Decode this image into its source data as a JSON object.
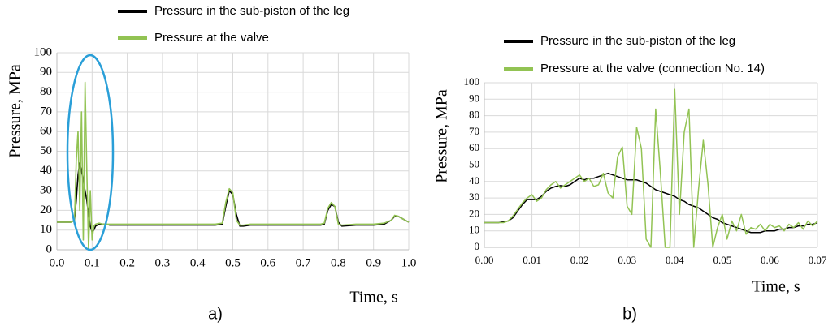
{
  "chart_data": [
    {
      "type": "line",
      "caption": "a)",
      "xlabel": "Time, s",
      "ylabel": "Pressure, MPa",
      "x": [
        0,
        0.01,
        0.02,
        0.03,
        0.04,
        0.05,
        0.055,
        0.06,
        0.065,
        0.07,
        0.075,
        0.08,
        0.085,
        0.09,
        0.095,
        0.1,
        0.105,
        0.11,
        0.12,
        0.13,
        0.14,
        0.15,
        0.2,
        0.25,
        0.3,
        0.35,
        0.4,
        0.45,
        0.47,
        0.48,
        0.49,
        0.5,
        0.51,
        0.52,
        0.53,
        0.55,
        0.6,
        0.65,
        0.7,
        0.75,
        0.76,
        0.77,
        0.78,
        0.79,
        0.8,
        0.81,
        0.85,
        0.9,
        0.93,
        0.95,
        0.96,
        0.97,
        0.98,
        0.99,
        1.0
      ],
      "series": [
        {
          "name": "Pressure in the sub-piston of the leg",
          "color": "#000000",
          "values": [
            14,
            14,
            14,
            14,
            14,
            15,
            25,
            38,
            44,
            40,
            35,
            30,
            25,
            18,
            12,
            9,
            10,
            12,
            13,
            13,
            13,
            12.5,
            12.5,
            12.5,
            12.5,
            12.5,
            12.5,
            12.5,
            13,
            22,
            30,
            28,
            18,
            12,
            12,
            12.5,
            12.5,
            12.5,
            12.5,
            12.5,
            13,
            20,
            23,
            22,
            14,
            12,
            12.5,
            12.5,
            13,
            15,
            17,
            17,
            16,
            15,
            14
          ]
        },
        {
          "name": "Pressure at the valve",
          "color": "#92c353",
          "values": [
            14,
            14,
            14,
            14,
            14,
            15,
            45,
            60,
            20,
            70,
            5,
            85,
            40,
            0,
            30,
            5,
            12,
            13,
            13.5,
            13,
            13,
            13,
            13,
            13,
            13,
            13,
            13,
            13,
            13.5,
            24,
            31,
            29,
            15,
            12.5,
            12.5,
            13,
            13,
            13,
            13,
            13,
            13.5,
            21,
            24,
            22,
            13,
            12.5,
            13,
            13,
            13.5,
            15,
            17.5,
            17,
            16,
            15,
            14
          ]
        }
      ],
      "xlim": [
        0,
        1.0
      ],
      "xticks": [
        {
          "value": 0,
          "label": "0.0"
        },
        0.1,
        0.2,
        0.3,
        0.4,
        0.5,
        0.6,
        0.7,
        0.8,
        0.9,
        {
          "value": 1.0,
          "label": "1.0"
        }
      ],
      "ylim": [
        0,
        100
      ],
      "yticks": [
        0,
        10,
        20,
        30,
        40,
        50,
        60,
        70,
        80,
        90,
        100
      ],
      "grid": true
    },
    {
      "type": "line",
      "caption": "b)",
      "xlabel": "Time, s",
      "ylabel": "Pressure, MPa",
      "x": [
        0,
        0.001,
        0.002,
        0.003,
        0.004,
        0.005,
        0.006,
        0.007,
        0.008,
        0.009,
        0.01,
        0.011,
        0.012,
        0.013,
        0.014,
        0.015,
        0.016,
        0.017,
        0.018,
        0.019,
        0.02,
        0.021,
        0.022,
        0.023,
        0.024,
        0.025,
        0.026,
        0.027,
        0.028,
        0.029,
        0.03,
        0.031,
        0.032,
        0.033,
        0.034,
        0.035,
        0.036,
        0.037,
        0.038,
        0.039,
        0.04,
        0.041,
        0.042,
        0.043,
        0.044,
        0.045,
        0.046,
        0.047,
        0.048,
        0.049,
        0.05,
        0.051,
        0.052,
        0.053,
        0.054,
        0.055,
        0.056,
        0.057,
        0.058,
        0.059,
        0.06,
        0.061,
        0.062,
        0.063,
        0.064,
        0.065,
        0.066,
        0.067,
        0.068,
        0.069,
        0.07
      ],
      "series": [
        {
          "name": "Pressure in the sub-piston of the leg",
          "color": "#000000",
          "values": [
            15,
            15,
            15,
            15,
            15.5,
            16,
            18,
            22,
            26,
            29,
            29,
            29,
            31,
            34,
            36,
            37,
            37.5,
            37,
            38,
            40,
            42,
            41,
            42,
            42,
            43,
            44,
            45,
            44,
            43,
            42,
            41,
            41,
            41,
            40,
            39,
            37,
            35,
            34,
            33,
            32,
            31,
            29,
            28,
            26,
            25,
            24,
            22,
            20,
            18,
            17,
            15,
            14,
            13,
            12,
            11,
            10,
            9,
            9,
            9,
            10,
            10,
            10,
            11,
            11,
            12,
            12,
            13,
            13,
            14,
            14,
            15
          ]
        },
        {
          "name": "Pressure at the valve (connection No. 14)",
          "color": "#92c353",
          "values": [
            15,
            15,
            15,
            15,
            15,
            16,
            19,
            23,
            27,
            30,
            32,
            28,
            30,
            35,
            38,
            40,
            36,
            38,
            40,
            42,
            44,
            40,
            42,
            37,
            38,
            45,
            33,
            30,
            55,
            61,
            25,
            20,
            73,
            60,
            5,
            0,
            84,
            45,
            0,
            0,
            96,
            20,
            70,
            84,
            0,
            35,
            65,
            38,
            0,
            12,
            20,
            5,
            16,
            10,
            20,
            8,
            12,
            11,
            14,
            10,
            14,
            12,
            13,
            10,
            14,
            12,
            15,
            11,
            16,
            13,
            16
          ]
        }
      ],
      "xlim": [
        0,
        0.07
      ],
      "xticks": [
        {
          "value": 0,
          "label": "0.00"
        },
        0.01,
        0.02,
        0.03,
        0.04,
        0.05,
        0.06,
        0.07
      ],
      "ylim": [
        0,
        100
      ],
      "yticks": [
        0,
        10,
        20,
        30,
        40,
        50,
        60,
        70,
        80,
        90,
        100
      ],
      "grid": true
    }
  ]
}
